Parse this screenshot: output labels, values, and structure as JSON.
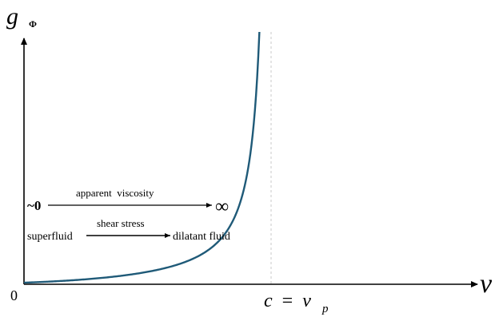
{
  "axes": {
    "y_label_main": "g",
    "y_label_sub": "Φ",
    "x_label": "v",
    "origin_label": "0",
    "asymptote_lhs": "c",
    "asymptote_eq": "=",
    "asymptote_rhs_main": "v",
    "asymptote_rhs_sub": "p"
  },
  "annotations": {
    "viscosity_left": "~0",
    "viscosity_caption": "apparent  viscosity",
    "viscosity_right": "∞",
    "stress_left": "superfluid",
    "stress_caption": "shear stress",
    "stress_right": "dilatant fluid"
  },
  "colors": {
    "curve": "#1f5a78",
    "axes": "#000000",
    "asymptote": "#c8c8c8"
  }
}
